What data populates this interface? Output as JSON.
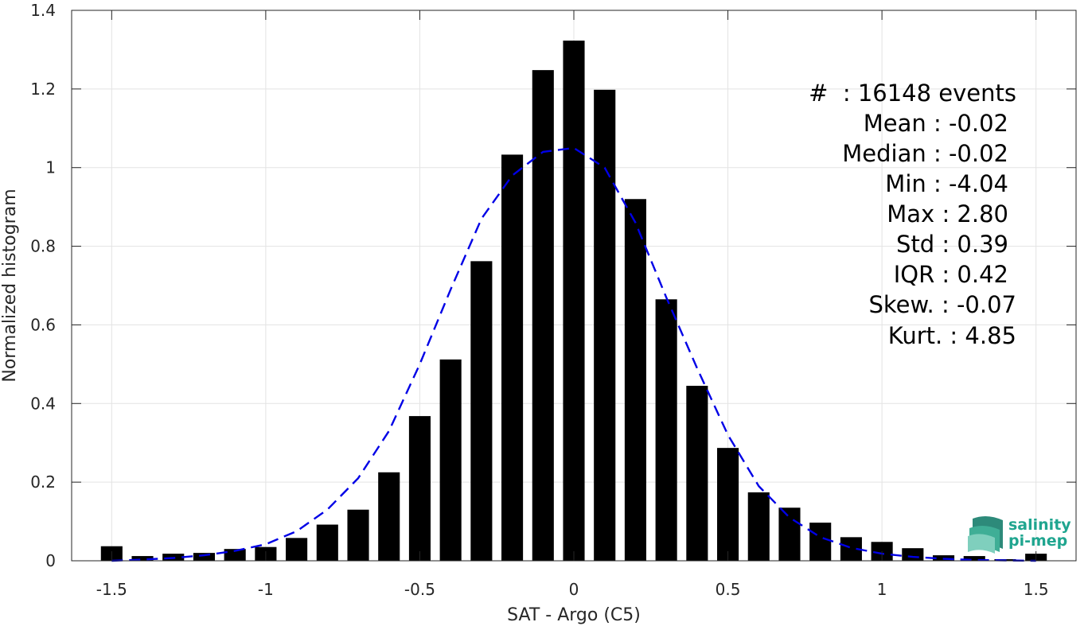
{
  "chart_data": {
    "type": "bar",
    "title": "",
    "xlabel": "SAT - Argo (C5)",
    "ylabel": "Normalized histogram",
    "xlim": [
      -1.63,
      1.63
    ],
    "ylim": [
      0,
      1.4
    ],
    "grid": true,
    "x_ticks": [
      -1.5,
      -1,
      -0.5,
      0,
      0.5,
      1,
      1.5
    ],
    "x_tick_labels": [
      "-1.5",
      "-1",
      "-0.5",
      "0",
      "0.5",
      "1",
      "1.5"
    ],
    "y_ticks": [
      0,
      0.2,
      0.4,
      0.6,
      0.8,
      1,
      1.2,
      1.4
    ],
    "y_tick_labels": [
      "0",
      "0.2",
      "0.4",
      "0.6",
      "0.8",
      "1",
      "1.2",
      "1.4"
    ],
    "bin_width": 0.1,
    "bar_width": 0.07,
    "series": [
      {
        "kind": "histogram",
        "color": "#000000",
        "x": [
          -1.5,
          -1.4,
          -1.3,
          -1.2,
          -1.1,
          -1.0,
          -0.9,
          -0.8,
          -0.7,
          -0.6,
          -0.5,
          -0.4,
          -0.3,
          -0.2,
          -0.1,
          0.0,
          0.1,
          0.2,
          0.3,
          0.4,
          0.5,
          0.6,
          0.7,
          0.8,
          0.9,
          1.0,
          1.1,
          1.2,
          1.3,
          1.4,
          1.5
        ],
        "values": [
          0.037,
          0.012,
          0.018,
          0.02,
          0.03,
          0.035,
          0.058,
          0.092,
          0.13,
          0.225,
          0.368,
          0.512,
          0.762,
          1.033,
          1.248,
          1.323,
          1.198,
          0.92,
          0.665,
          0.445,
          0.287,
          0.174,
          0.135,
          0.097,
          0.06,
          0.048,
          0.032,
          0.014,
          0.012,
          0.004,
          0.018
        ]
      },
      {
        "kind": "fitted-normal",
        "color": "#0000e6",
        "style": "dashed",
        "x": [
          -1.5,
          -1.4,
          -1.3,
          -1.2,
          -1.1,
          -1.0,
          -0.9,
          -0.8,
          -0.7,
          -0.6,
          -0.5,
          -0.4,
          -0.3,
          -0.2,
          -0.1,
          0.0,
          0.1,
          0.2,
          0.3,
          0.4,
          0.5,
          0.6,
          0.7,
          0.8,
          0.9,
          1.0,
          1.1,
          1.2,
          1.3,
          1.4,
          1.5
        ],
        "values": [
          0.0,
          0.003,
          0.007,
          0.014,
          0.025,
          0.042,
          0.075,
          0.13,
          0.21,
          0.33,
          0.5,
          0.69,
          0.87,
          0.98,
          1.04,
          1.05,
          1.0,
          0.86,
          0.67,
          0.49,
          0.32,
          0.19,
          0.11,
          0.06,
          0.033,
          0.018,
          0.01,
          0.005,
          0.002,
          0.001,
          0.0
        ]
      }
    ],
    "stats_box": {
      "position": "top-right",
      "lines": [
        "#  : 16148 events",
        "Mean : -0.02",
        "Median : -0.02",
        "Min : -4.04",
        "Max : 2.80",
        "Std : 0.39",
        "IQR : 0.42",
        "Skew. : -0.07",
        "Kurt. : 4.85"
      ]
    }
  },
  "logo": {
    "line1": "salinity",
    "line2": "pi-mep"
  }
}
